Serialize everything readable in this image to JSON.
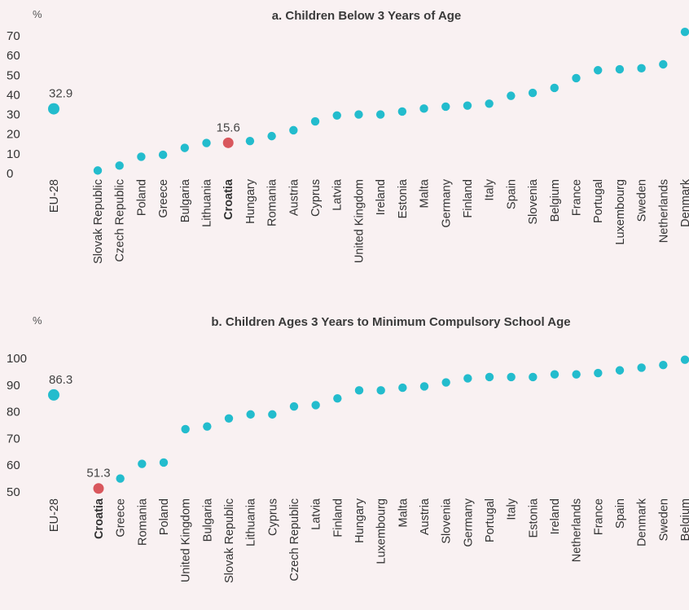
{
  "colors": {
    "dot": "#23bccd",
    "highlight": "#d9575d",
    "axis": "#bbbbbb"
  },
  "chart_data": [
    {
      "type": "scatter",
      "title": "a. Children Below 3 Years of Age",
      "unit": "%",
      "ylim": [
        0,
        70
      ],
      "yticks": [
        0,
        10,
        20,
        30,
        40,
        50,
        60,
        70
      ],
      "highlight": "Croatia",
      "reference": "EU-28",
      "categories": [
        "EU-28",
        "Slovak Republic",
        "Czech Republic",
        "Poland",
        "Greece",
        "Bulgaria",
        "Lithuania",
        "Croatia",
        "Hungary",
        "Romania",
        "Austria",
        "Cyprus",
        "Latvia",
        "United Kingdom",
        "Ireland",
        "Estonia",
        "Malta",
        "Germany",
        "Finland",
        "Italy",
        "Spain",
        "Slovenia",
        "Belgium",
        "France",
        "Portugal",
        "Luxembourg",
        "Sweden",
        "Netherlands",
        "Denmark"
      ],
      "values": [
        32.9,
        1.5,
        4,
        8.5,
        9.5,
        13,
        15.5,
        15.6,
        16.5,
        19,
        22,
        26.5,
        29.5,
        30,
        30,
        31.5,
        33,
        34,
        34.5,
        35.5,
        39.5,
        41,
        43.5,
        48.5,
        52.5,
        53,
        53.5,
        55.5,
        72
      ],
      "point_labels": {
        "EU-28": "32.9",
        "Croatia": "15.6"
      }
    },
    {
      "type": "scatter",
      "title": "b. Children Ages 3 Years to Minimum Compulsory School Age",
      "unit": "%",
      "ylim": [
        50,
        100
      ],
      "yticks": [
        50,
        60,
        70,
        80,
        90,
        100
      ],
      "highlight": "Croatia",
      "reference": "EU-28",
      "categories": [
        "EU-28",
        "Croatia",
        "Greece",
        "Romania",
        "Poland",
        "United Kingdom",
        "Bulgaria",
        "Slovak Republic",
        "Lithuania",
        "Cyprus",
        "Czech Republic",
        "Latvia",
        "Finland",
        "Hungary",
        "Luxembourg",
        "Malta",
        "Austria",
        "Slovenia",
        "Germany",
        "Portugal",
        "Italy",
        "Estonia",
        "Ireland",
        "Netherlands",
        "France",
        "Spain",
        "Denmark",
        "Sweden",
        "Belgium"
      ],
      "values": [
        86.3,
        51.3,
        55,
        60.5,
        61,
        73.5,
        74.5,
        77.5,
        79,
        79,
        82,
        82.5,
        85,
        88,
        88,
        89,
        89.5,
        91,
        92.5,
        93,
        93,
        93,
        94,
        94,
        94.5,
        95.5,
        96.5,
        97.5,
        99.5
      ],
      "point_labels": {
        "EU-28": "86.3",
        "Croatia": "51.3"
      }
    }
  ]
}
